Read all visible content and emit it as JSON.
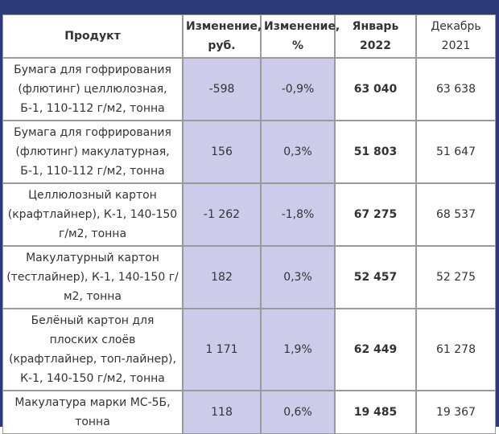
{
  "table": {
    "headers": [
      "Продукт",
      "Изменение, руб.",
      "Изменение, %",
      "Январь 2022",
      "Декабрь 2021"
    ],
    "rows": [
      {
        "product": "Бумага для гофрирования (флютинг) целлюлозная, Б-1, 110-112 г/м2, тонна",
        "change_rub": "-598",
        "change_pct": "-0,9%",
        "jan_2022": "63 040",
        "dec_2021": "63 638"
      },
      {
        "product": "Бумага для гофрирования (флютинг) макулатурная, Б-1, 110-112 г/м2, тонна",
        "change_rub": "156",
        "change_pct": "0,3%",
        "jan_2022": "51 803",
        "dec_2021": "51 647"
      },
      {
        "product": "Целлюлозный картон (крафтлайнер), К-1, 140-150 г/м2, тонна",
        "change_rub": "-1 262",
        "change_pct": "-1,8%",
        "jan_2022": "67 275",
        "dec_2021": "68 537"
      },
      {
        "product": "Макулатурный картон (тестлайнер), К-1, 140-150 г/м2, тонна",
        "change_rub": "182",
        "change_pct": "0,3%",
        "jan_2022": "52 457",
        "dec_2021": "52 275"
      },
      {
        "product": "Белёный картон для плоских слоёв (крафтлайнер, топ-лайнер), К-1, 140-150 г/м2, тонна",
        "change_rub": "1 171",
        "change_pct": "1,9%",
        "jan_2022": "62 449",
        "dec_2021": "61 278"
      },
      {
        "product": "Макулатура марки МС-5Б, тонна",
        "change_rub": "118",
        "change_pct": "0,6%",
        "jan_2022": "19 485",
        "dec_2021": "19 367"
      }
    ]
  },
  "colors": {
    "frame": "#2e3a78",
    "change_cell_bg": "#ccccea",
    "border": "#9a9a9a"
  }
}
